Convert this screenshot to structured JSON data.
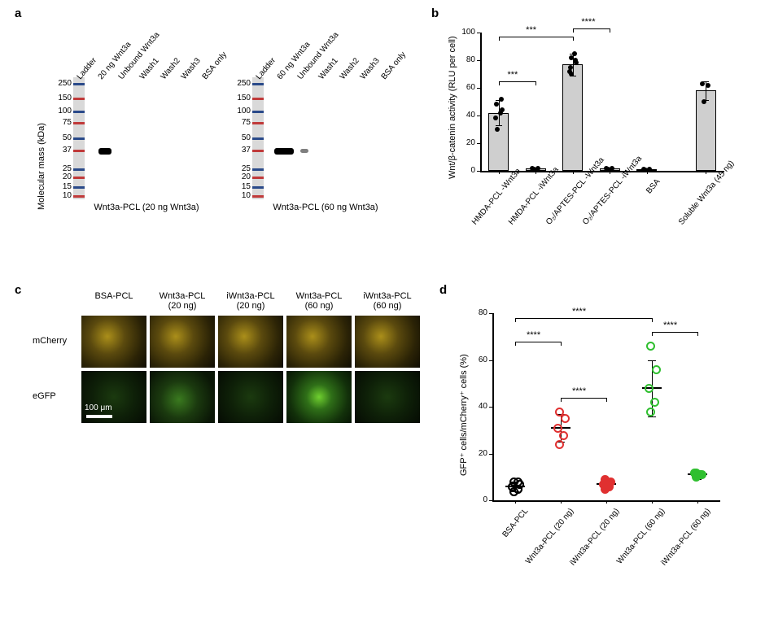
{
  "panel_a": {
    "label": "a",
    "yaxis": "Molecular mass (kDa)",
    "ladder_marks": [
      250,
      150,
      100,
      75,
      50,
      37,
      25,
      20,
      15,
      10
    ],
    "ladder_positions_pct": [
      5,
      17,
      28,
      37,
      50,
      60,
      75,
      82,
      90,
      97
    ],
    "ladder_colors": [
      "#2a4a8a",
      "#c03a3a",
      "#2a4a8a",
      "#c03a3a",
      "#2a4a8a",
      "#c03a3a",
      "#2a4a8a",
      "#c03a3a",
      "#2a4a8a",
      "#c03a3a"
    ],
    "blots": [
      {
        "lanes": [
          "Ladder",
          "20 ng Wnt3a",
          "Unbound Wnt3a",
          "Wash1",
          "Wash2",
          "Wash3",
          "BSA only"
        ],
        "caption": "Wnt3a-PCL (20 ng Wnt3a)",
        "band_lane_idx": 1,
        "band_width": 16
      },
      {
        "lanes": [
          "Ladder",
          "60 ng Wnt3a",
          "Unbound Wnt3a",
          "Wash1",
          "Wash2",
          "Wash3",
          "BSA only"
        ],
        "caption": "Wnt3a-PCL (60 ng Wnt3a)",
        "band_lane_idx": 1,
        "band_width": 24
      }
    ]
  },
  "panel_b": {
    "label": "b",
    "yaxis": "Wnt/β-catenin activity (RLU per cell)",
    "ylim": [
      0,
      100
    ],
    "ytick_step": 20,
    "categories": [
      "HMDA-PCL -Wnt3a",
      "HMDA-PCL -iWnt3a",
      "O₂/APTES-PCL -Wnt3a",
      "O₂/APTES-PCL -iWnt3a",
      "BSA",
      "Soluble Wnt3a (45 ng)"
    ],
    "means": [
      42,
      1.5,
      77,
      1.5,
      1,
      58
    ],
    "err": [
      9,
      0.5,
      8,
      0.5,
      0.5,
      7
    ],
    "points": [
      [
        30,
        52,
        38,
        42,
        48,
        44
      ],
      [
        1,
        1.5,
        2
      ],
      [
        70,
        80,
        72,
        85,
        75,
        78,
        82
      ],
      [
        1,
        1.5,
        2
      ],
      [
        0.8,
        1,
        1.2
      ],
      [
        50,
        62,
        63
      ]
    ],
    "bar_color": "#cfcfcf",
    "axis_color": "#000000",
    "sig": [
      {
        "from": 0,
        "to": 1,
        "label": "***",
        "y": 65
      },
      {
        "from": 0,
        "to": 2,
        "label": "***",
        "y": 97
      },
      {
        "from": 2,
        "to": 3,
        "label": "****",
        "y": 103
      }
    ]
  },
  "panel_c": {
    "label": "c",
    "cols": [
      "BSA-PCL",
      "Wnt3a-PCL\n(20 ng)",
      "iWnt3a-PCL\n(20 ng)",
      "Wnt3a-PCL\n(60 ng)",
      "iWnt3a-PCL\n(60 ng)"
    ],
    "rows": [
      "mCherry",
      "eGFP"
    ],
    "scalebar_label": "100 μm",
    "mcherry_bg": "radial-gradient(circle at 40% 40%, #ab8f1a 0%, #5b4a0e 35%, #2b2306 70%, #100d03 100%)",
    "egfp_bg": {
      "low": "radial-gradient(circle at 50% 50%, #1b3a0f 0%, #0e2008 50%, #050b03 100%)",
      "mid": "radial-gradient(circle at 45% 55%, #3a7a1f 0%, #1b3a0f 40%, #0a1606 80%)",
      "high": "radial-gradient(circle at 50% 50%, #6fcf2f 0%, #2f6f18 30%, #12300a 70%, #071504 100%)"
    },
    "egfp_levels": [
      "low",
      "mid",
      "low",
      "high",
      "low"
    ]
  },
  "panel_d": {
    "label": "d",
    "yaxis": "GFP⁺ cells/mCherry⁺ cells (%)",
    "ylim": [
      0,
      80
    ],
    "ytick_step": 20,
    "categories": [
      "BSA-PCL",
      "Wnt3a-PCL (20 ng)",
      "iWnt3a-PCL (20 ng)",
      "Wnt3a-PCL (60 ng)",
      "iWnt3a-PCL (60 ng)"
    ],
    "styles": [
      {
        "type": "open",
        "color": "#000000"
      },
      {
        "type": "open",
        "color": "#e03030"
      },
      {
        "type": "fill",
        "color": "#e03030"
      },
      {
        "type": "open",
        "color": "#2fbf2f"
      },
      {
        "type": "fill",
        "color": "#2fbf2f"
      }
    ],
    "means": [
      6,
      31,
      7,
      48,
      11
    ],
    "err": [
      2,
      6,
      2,
      12,
      2
    ],
    "points": [
      [
        4,
        5,
        6,
        7,
        8,
        5,
        6,
        7,
        4,
        8
      ],
      [
        24,
        28,
        31,
        35,
        38
      ],
      [
        5,
        6,
        7,
        8,
        9
      ],
      [
        38,
        42,
        48,
        56,
        66
      ],
      [
        10,
        11,
        12,
        11,
        12
      ]
    ],
    "sig": [
      {
        "from": 0,
        "to": 1,
        "label": "****",
        "y": 68
      },
      {
        "from": 1,
        "to": 2,
        "label": "****",
        "y": 44
      },
      {
        "from": 0,
        "to": 3,
        "label": "****",
        "y": 78
      },
      {
        "from": 3,
        "to": 4,
        "label": "****",
        "y": 72
      }
    ]
  }
}
